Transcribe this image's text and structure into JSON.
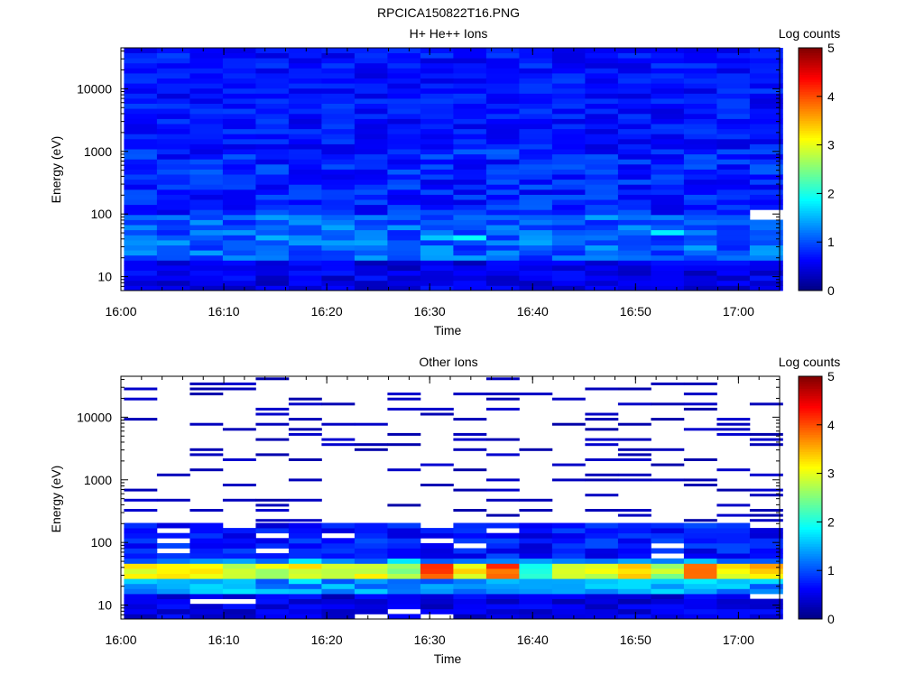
{
  "figure": {
    "title": "RPCICA150822T16.PNG"
  },
  "colorbar": {
    "label": "Log counts",
    "range": [
      0,
      5
    ],
    "ticks": [
      "0",
      "1",
      "2",
      "3",
      "4",
      "5"
    ]
  },
  "chart_data": [
    {
      "type": "heatmap",
      "title": "H+ He++ Ions",
      "xlabel": "Time",
      "ylabel": "Energy (eV)",
      "y_scale": "log",
      "ylim": [
        6,
        45000
      ],
      "x_ticks": [
        "16:00",
        "16:10",
        "16:20",
        "16:30",
        "16:40",
        "16:50",
        "17:00"
      ],
      "x_tick_minutes": [
        0,
        10,
        20,
        30,
        40,
        50,
        60
      ],
      "xlim_minutes": [
        0,
        64
      ],
      "y_ticks": [
        "10",
        "100",
        "1000",
        "10000"
      ],
      "y_tick_values": [
        10,
        100,
        1000,
        10000
      ],
      "time_bins_minutes": [
        0.3,
        3.5,
        6.7,
        9.9,
        13.1,
        16.3,
        19.5,
        22.7,
        25.9,
        29.1,
        32.3,
        35.5,
        38.7,
        41.9,
        45.1,
        48.3,
        51.5,
        54.7,
        57.9,
        61.1
      ],
      "energy_bins_ev": [
        6,
        45000
      ],
      "n_energy_bins": 48,
      "typical_log_counts": {
        "above_1000eV": 0.7,
        "100_to_1000eV": 0.8,
        "20_to_100eV": 1.1,
        "below_20eV": 0.5
      },
      "peaks": [
        {
          "time_minutes": 33.9,
          "energy_ev": 44,
          "log_counts": 1.9
        },
        {
          "time_minutes": 53.1,
          "energy_ev": 55,
          "log_counts": 1.8
        },
        {
          "time_minutes": 30.7,
          "energy_ev": 42,
          "log_counts": 1.6
        },
        {
          "time_minutes": 13.1,
          "energy_ev": 40,
          "log_counts": 1.5
        }
      ]
    },
    {
      "type": "heatmap",
      "title": "Other Ions",
      "xlabel": "Time",
      "ylabel": "Energy (eV)",
      "y_scale": "log",
      "ylim": [
        6,
        45000
      ],
      "x_ticks": [
        "16:00",
        "16:10",
        "16:20",
        "16:30",
        "16:40",
        "16:50",
        "17:00"
      ],
      "x_tick_minutes": [
        0,
        10,
        20,
        30,
        40,
        50,
        60
      ],
      "xlim_minutes": [
        0,
        64
      ],
      "y_ticks": [
        "10",
        "100",
        "1000",
        "10000"
      ],
      "y_tick_values": [
        10,
        100,
        1000,
        10000
      ],
      "time_bins_minutes": [
        0.3,
        3.5,
        6.7,
        9.9,
        13.1,
        16.3,
        19.5,
        22.7,
        25.9,
        29.1,
        32.3,
        35.5,
        38.7,
        41.9,
        45.1,
        48.3,
        51.5,
        54.7,
        57.9,
        61.1
      ],
      "energy_bins_ev": [
        6,
        45000
      ],
      "n_energy_bins": 48,
      "continuous_band_upper_ev": 200,
      "high_energy_sparse_log_counts": 0.3,
      "peak_band_ev": [
        28,
        50
      ],
      "peak_band_log_counts_by_time_bin": [
        3.2,
        3.4,
        3.3,
        3.0,
        2.9,
        3.0,
        2.7,
        2.9,
        2.6,
        3.9,
        3.2,
        4.0,
        2.2,
        3.1,
        3.0,
        3.3,
        2.7,
        3.7,
        3.0,
        3.4
      ]
    }
  ]
}
